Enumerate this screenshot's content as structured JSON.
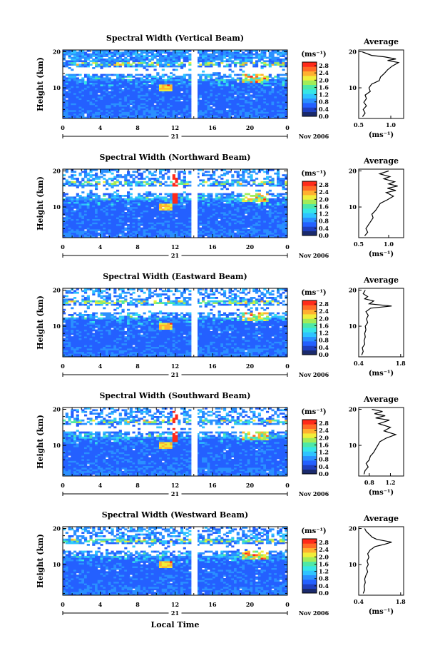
{
  "chart_data": {
    "type": "heatmap",
    "panels": [
      {
        "title": "Spectral Width (Vertical Beam)",
        "profile": [
          [
            0.56,
            2
          ],
          [
            0.6,
            3
          ],
          [
            0.57,
            4
          ],
          [
            0.62,
            5
          ],
          [
            0.58,
            6
          ],
          [
            0.62,
            7
          ],
          [
            0.6,
            8
          ],
          [
            0.68,
            9
          ],
          [
            0.66,
            10
          ],
          [
            0.7,
            11
          ],
          [
            0.82,
            12
          ],
          [
            0.84,
            13
          ],
          [
            0.9,
            14
          ],
          [
            0.95,
            15
          ],
          [
            1.02,
            16
          ],
          [
            1.12,
            17
          ],
          [
            0.95,
            17.6
          ],
          [
            1.08,
            18
          ],
          [
            0.9,
            18.6
          ],
          [
            0.7,
            19
          ],
          [
            0.55,
            20
          ]
        ],
        "profile_xlim": [
          0.5,
          1.2
        ],
        "profile_ticks": [
          "0.5",
          "1.0"
        ]
      },
      {
        "title": "Spectral Width (Northward Beam)",
        "profile": [
          [
            0.6,
            2
          ],
          [
            0.65,
            3
          ],
          [
            0.62,
            4
          ],
          [
            0.66,
            5
          ],
          [
            0.7,
            6
          ],
          [
            0.74,
            7
          ],
          [
            0.72,
            8
          ],
          [
            0.78,
            9
          ],
          [
            0.82,
            10
          ],
          [
            0.86,
            11
          ],
          [
            0.98,
            12
          ],
          [
            1.08,
            13
          ],
          [
            0.96,
            14
          ],
          [
            1.12,
            14.6
          ],
          [
            0.98,
            15.2
          ],
          [
            1.15,
            15.8
          ],
          [
            1.0,
            16.4
          ],
          [
            1.1,
            17
          ],
          [
            0.92,
            17.8
          ],
          [
            1.02,
            18.4
          ],
          [
            0.85,
            19.2
          ],
          [
            1.0,
            20
          ]
        ],
        "profile_xlim": [
          0.5,
          1.25
        ],
        "profile_ticks": [
          "0.5",
          "1.0"
        ]
      },
      {
        "title": "Spectral Width (Eastward Beam)",
        "profile": [
          [
            0.5,
            2
          ],
          [
            0.55,
            3
          ],
          [
            0.52,
            4
          ],
          [
            0.6,
            5
          ],
          [
            0.58,
            6
          ],
          [
            0.62,
            7
          ],
          [
            0.6,
            8
          ],
          [
            0.64,
            9
          ],
          [
            0.62,
            10
          ],
          [
            0.7,
            11
          ],
          [
            0.66,
            12
          ],
          [
            0.72,
            13
          ],
          [
            0.64,
            14
          ],
          [
            0.8,
            15
          ],
          [
            1.5,
            15.6
          ],
          [
            0.75,
            16.2
          ],
          [
            0.9,
            17
          ],
          [
            0.6,
            17.6
          ],
          [
            0.7,
            18.2
          ],
          [
            0.55,
            19
          ],
          [
            0.62,
            20
          ]
        ],
        "profile_xlim": [
          0.4,
          1.9
        ],
        "profile_ticks": [
          "0.4",
          "1.8"
        ]
      },
      {
        "title": "Spectral Width (Southward Beam)",
        "profile": [
          [
            0.7,
            2
          ],
          [
            0.72,
            3
          ],
          [
            0.78,
            4
          ],
          [
            0.74,
            5
          ],
          [
            0.8,
            6
          ],
          [
            0.82,
            7
          ],
          [
            0.88,
            8
          ],
          [
            0.92,
            9
          ],
          [
            0.96,
            10
          ],
          [
            1.0,
            11
          ],
          [
            1.12,
            12
          ],
          [
            1.3,
            13
          ],
          [
            1.08,
            14
          ],
          [
            1.2,
            15
          ],
          [
            0.98,
            16
          ],
          [
            1.18,
            17
          ],
          [
            0.92,
            17.6
          ],
          [
            1.1,
            18.2
          ],
          [
            0.9,
            18.8
          ],
          [
            1.05,
            19.4
          ],
          [
            0.85,
            20
          ]
        ],
        "profile_xlim": [
          0.6,
          1.45
        ],
        "profile_ticks": [
          "0.8",
          "1.2"
        ]
      },
      {
        "title": "Spectral Width (Westward Beam)",
        "profile": [
          [
            0.55,
            2
          ],
          [
            0.6,
            3
          ],
          [
            0.58,
            4
          ],
          [
            0.62,
            5
          ],
          [
            0.6,
            6
          ],
          [
            0.64,
            7
          ],
          [
            0.7,
            8
          ],
          [
            0.66,
            9
          ],
          [
            0.72,
            10
          ],
          [
            0.68,
            11
          ],
          [
            0.74,
            12
          ],
          [
            0.7,
            13
          ],
          [
            0.78,
            14
          ],
          [
            0.95,
            15
          ],
          [
            1.25,
            15.6
          ],
          [
            1.5,
            16.2
          ],
          [
            1.0,
            17
          ],
          [
            0.85,
            17.6
          ],
          [
            0.75,
            18.4
          ],
          [
            0.65,
            19.2
          ],
          [
            0.6,
            20
          ]
        ],
        "profile_xlim": [
          0.4,
          1.9
        ],
        "profile_ticks": [
          "0.4",
          "1.8"
        ]
      }
    ],
    "x_ticks": [
      "0",
      "4",
      "8",
      "12",
      "16",
      "20",
      "0"
    ],
    "xlim_hours": [
      0,
      24
    ],
    "gap_hours": [
      13.8,
      14.4
    ],
    "date_day": "21",
    "date_label": "Nov 2006",
    "xlabel": "Local Time",
    "ylabel": "Height (km)",
    "ylim_km": [
      1.5,
      20.5
    ],
    "y_ticks": [
      "10",
      "20"
    ],
    "y_tick_values": [
      10,
      20
    ],
    "colorbar_unit": "(ms⁻¹)",
    "colorbar_ticks": [
      "0.0",
      "0.4",
      "0.8",
      "1.2",
      "1.6",
      "2.0",
      "2.4",
      "2.8"
    ],
    "colorbar_range": [
      0.0,
      3.0
    ],
    "profile_title": "Average",
    "profile_unit": "(ms⁻¹)",
    "colormap": [
      "#1a2a6c",
      "#1f3fbf",
      "#2460ff",
      "#2a90ff",
      "#2ec4ff",
      "#36e6e6",
      "#4ee8a6",
      "#a2ec58",
      "#f0ee3a",
      "#ffb030",
      "#ff6a26",
      "#ff2a1a"
    ]
  }
}
